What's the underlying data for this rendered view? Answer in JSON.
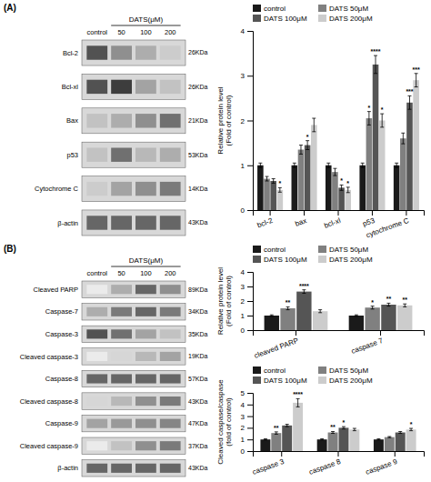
{
  "chart_data": [
    {
      "type": "heatmap",
      "title": "(A)",
      "subtitle": "DATS(μM)",
      "categories": [
        "control",
        "50",
        "100",
        "200"
      ],
      "rows": [
        "Bcl-2",
        "Bcl-xl",
        "Bax",
        "p53",
        "Cytochrome C",
        "β-actin"
      ],
      "row_labels": [
        "26KDa",
        "26KDa",
        "21KDa",
        "53KDa",
        "14KDa",
        "43KDa"
      ],
      "cells": [
        [
          0.85,
          0.55,
          0.4,
          0.25
        ],
        [
          0.85,
          0.95,
          0.45,
          0.3
        ],
        [
          0.3,
          0.4,
          0.55,
          0.7
        ],
        [
          0.3,
          0.7,
          0.35,
          0.4
        ],
        [
          0.25,
          0.45,
          0.55,
          0.65
        ],
        [
          0.75,
          0.75,
          0.75,
          0.75
        ]
      ]
    },
    {
      "type": "bar",
      "categories": [
        "bcl-2",
        "bax",
        "bcl-xl",
        "p53",
        "cytochrome C"
      ],
      "ylabel": "Relative protein level\n(Fold of control)",
      "ylim": [
        0,
        4
      ],
      "yticks": [
        0,
        1,
        2,
        3,
        4
      ],
      "legend": "upper left",
      "series": [
        {
          "name": "control",
          "color": "#1a1a1a",
          "values": [
            1.0,
            1.0,
            1.0,
            1.0,
            1.0
          ],
          "errors": [
            0.05,
            0.05,
            0.05,
            0.05,
            0.05
          ]
        },
        {
          "name": "DATS 50μM",
          "color": "#808080",
          "values": [
            0.7,
            1.35,
            0.85,
            2.05,
            1.6
          ],
          "errors": [
            0.05,
            0.1,
            0.08,
            0.15,
            0.12
          ],
          "significance": [
            null,
            null,
            null,
            "*",
            null
          ]
        },
        {
          "name": "DATS 100μM",
          "color": "#555555",
          "values": [
            0.65,
            1.45,
            0.5,
            3.25,
            2.4
          ],
          "errors": [
            0.05,
            0.1,
            0.06,
            0.2,
            0.15
          ],
          "significance": [
            null,
            "*",
            "*",
            "****",
            "***"
          ]
        },
        {
          "name": "DATS 200μM",
          "color": "#cccccc",
          "values": [
            0.45,
            1.9,
            0.45,
            2.0,
            2.9
          ],
          "errors": [
            0.05,
            0.15,
            0.06,
            0.15,
            0.15
          ],
          "significance": [
            "*",
            null,
            "*",
            "*",
            "***"
          ]
        }
      ]
    },
    {
      "type": "heatmap",
      "title": "(B)",
      "subtitle": "DATS(μM)",
      "categories": [
        "control",
        "50",
        "100",
        "200"
      ],
      "rows": [
        "Cleaved PARP",
        "Caspase-7",
        "Caspase-3",
        "Cleaved caspase-3",
        "Caspase-8",
        "Cleaved caspase-8",
        "Caspase-9",
        "Cleaved caspase-9",
        "β-actin"
      ],
      "row_labels": [
        "89KDa",
        "34KDa",
        "35KDa",
        "19KDa",
        "57KDa",
        "43KDa",
        "47KDa",
        "37KDa",
        "43KDa"
      ],
      "cells": [
        [
          0.1,
          0.4,
          0.75,
          0.55
        ],
        [
          0.4,
          0.65,
          0.75,
          0.65
        ],
        [
          0.85,
          0.7,
          0.45,
          0.3
        ],
        [
          0.1,
          0.2,
          0.35,
          0.45
        ],
        [
          0.75,
          0.75,
          0.75,
          0.75
        ],
        [
          0.2,
          0.35,
          0.55,
          0.65
        ],
        [
          0.45,
          0.5,
          0.55,
          0.6
        ],
        [
          0.1,
          0.3,
          0.55,
          0.65
        ],
        [
          0.75,
          0.75,
          0.75,
          0.75
        ]
      ]
    },
    {
      "type": "bar",
      "categories": [
        "cleaved PARP",
        "caspase 7"
      ],
      "ylabel": "Relative protein level\n(Fold of control)",
      "ylim": [
        0,
        4
      ],
      "yticks": [
        0,
        1,
        2,
        3,
        4
      ],
      "legend": "upper left",
      "series": [
        {
          "name": "control",
          "color": "#1a1a1a",
          "values": [
            1.0,
            1.0
          ],
          "errors": [
            0.05,
            0.05
          ]
        },
        {
          "name": "DATS 50μM",
          "color": "#808080",
          "values": [
            1.5,
            1.55
          ],
          "errors": [
            0.1,
            0.1
          ],
          "significance": [
            "**",
            "*"
          ]
        },
        {
          "name": "DATS 100μM",
          "color": "#555555",
          "values": [
            2.65,
            1.75
          ],
          "errors": [
            0.12,
            0.1
          ],
          "significance": [
            "****",
            "**"
          ]
        },
        {
          "name": "DATS 200μM",
          "color": "#cccccc",
          "values": [
            1.3,
            1.7
          ],
          "errors": [
            0.1,
            0.1
          ],
          "significance": [
            null,
            "**"
          ]
        }
      ]
    },
    {
      "type": "bar",
      "categories": [
        "caspase 3",
        "caspase 8",
        "caspase 9"
      ],
      "ylabel": "Cleaved caspase/caspase\n(fold of control)",
      "ylim": [
        0,
        5
      ],
      "yticks": [
        0,
        1,
        2,
        3,
        4,
        5
      ],
      "legend": "upper left",
      "series": [
        {
          "name": "control",
          "color": "#1a1a1a",
          "values": [
            1.0,
            1.0,
            1.0
          ],
          "errors": [
            0.05,
            0.05,
            0.05
          ]
        },
        {
          "name": "DATS 50μM",
          "color": "#808080",
          "values": [
            1.55,
            1.6,
            1.2
          ],
          "errors": [
            0.1,
            0.08,
            0.05
          ],
          "significance": [
            "**",
            "**",
            null
          ]
        },
        {
          "name": "DATS 100μM",
          "color": "#555555",
          "values": [
            2.2,
            2.0,
            1.6
          ],
          "errors": [
            0.1,
            0.1,
            0.08
          ],
          "significance": [
            null,
            "*",
            null
          ]
        },
        {
          "name": "DATS 200μM",
          "color": "#cccccc",
          "values": [
            4.15,
            1.85,
            1.85
          ],
          "errors": [
            0.35,
            0.1,
            0.1
          ],
          "significance": [
            "****",
            null,
            "*"
          ]
        }
      ]
    }
  ]
}
